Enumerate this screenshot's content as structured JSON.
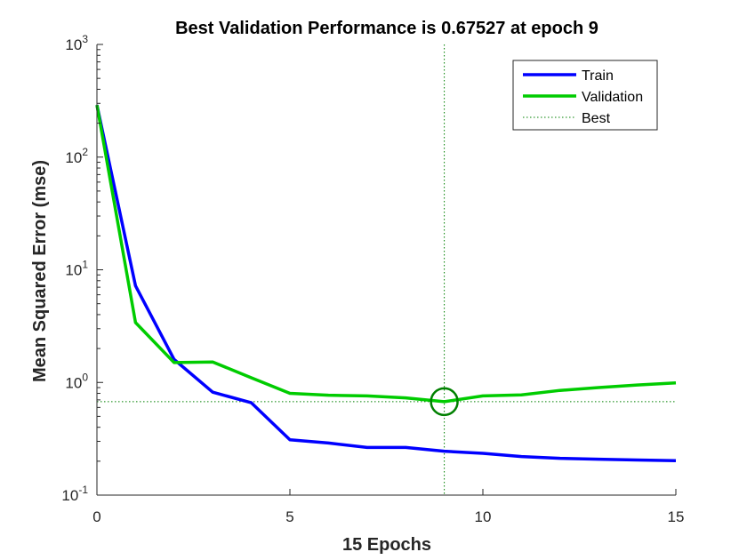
{
  "chart_data": {
    "type": "line",
    "title": "Best Validation Performance is 0.67527 at epoch 9",
    "xlabel": "15 Epochs",
    "ylabel": "Mean Squared Error  (mse)",
    "xlim": [
      0,
      15
    ],
    "ylim": [
      0.1,
      1000
    ],
    "yscale": "log",
    "grid": false,
    "legend_position": "top-right",
    "x_ticks": [
      "0",
      "5",
      "10",
      "15"
    ],
    "y_ticks": [
      {
        "base": "10",
        "exp": "-1"
      },
      {
        "base": "10",
        "exp": "0"
      },
      {
        "base": "10",
        "exp": "1"
      },
      {
        "base": "10",
        "exp": "2"
      },
      {
        "base": "10",
        "exp": "3"
      }
    ],
    "x": [
      0,
      1,
      2,
      3,
      4,
      5,
      6,
      7,
      8,
      9,
      10,
      11,
      12,
      13,
      14,
      15
    ],
    "series": [
      {
        "name": "Train",
        "color": "#0000ff",
        "values": [
          290,
          7.2,
          1.6,
          0.82,
          0.66,
          0.31,
          0.29,
          0.265,
          0.265,
          0.245,
          0.235,
          0.22,
          0.212,
          0.208,
          0.205,
          0.202
        ]
      },
      {
        "name": "Validation",
        "color": "#00cc00",
        "values": [
          290,
          3.4,
          1.5,
          1.52,
          1.1,
          0.8,
          0.77,
          0.76,
          0.73,
          0.675,
          0.76,
          0.775,
          0.85,
          0.9,
          0.95,
          0.99
        ]
      }
    ],
    "best": {
      "name": "Best",
      "epoch": 9,
      "value": 0.67527,
      "color": "#008000"
    }
  }
}
